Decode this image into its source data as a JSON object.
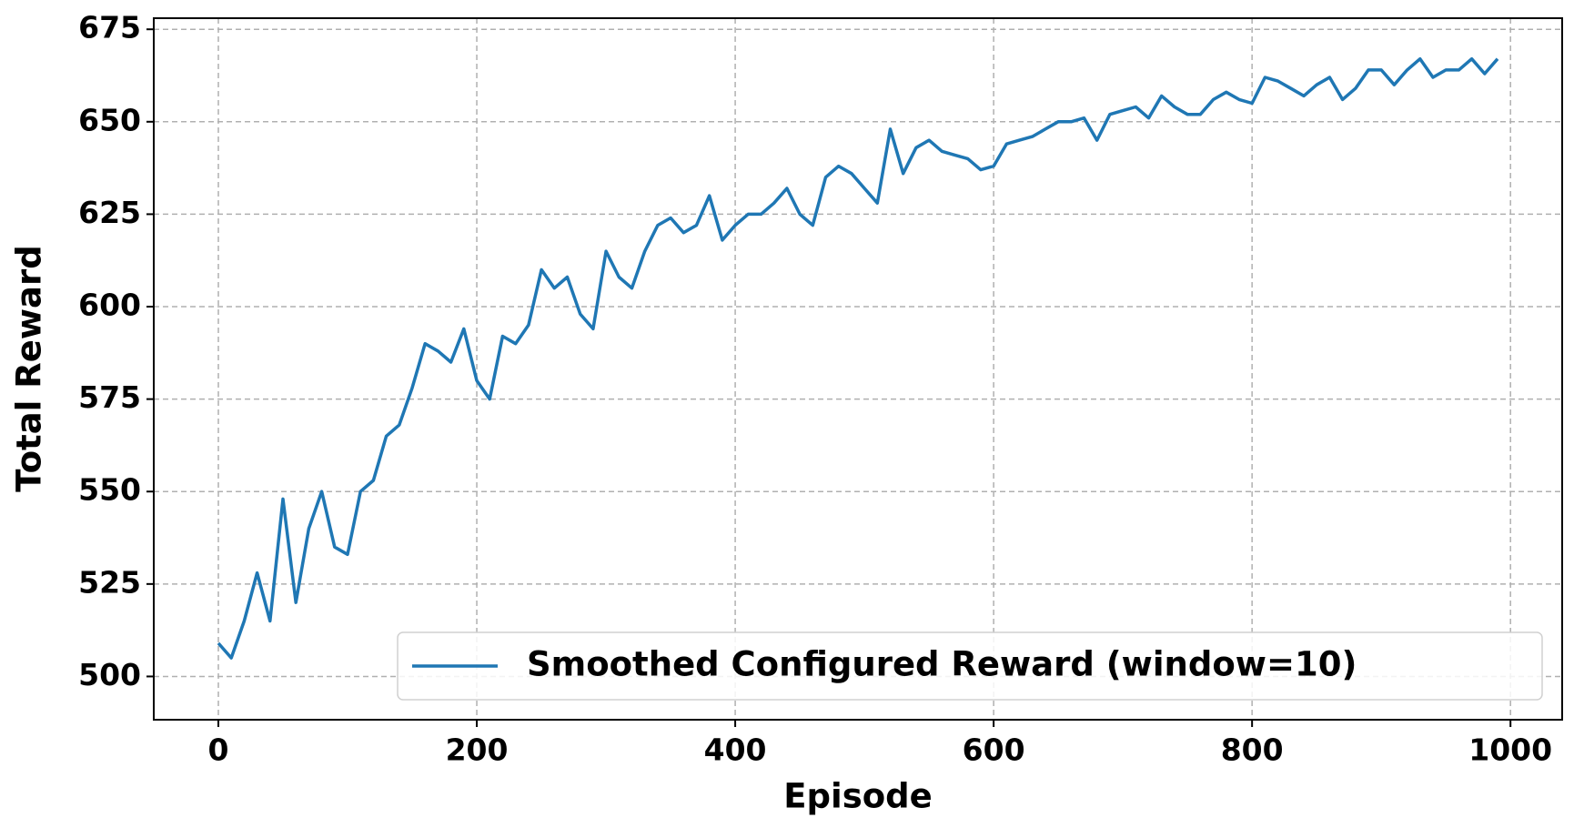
{
  "chart_data": {
    "type": "line",
    "xlabel": "Episode",
    "ylabel": "Total Reward",
    "x": [
      0,
      10,
      20,
      30,
      40,
      50,
      60,
      70,
      80,
      90,
      100,
      110,
      120,
      130,
      140,
      150,
      160,
      170,
      180,
      190,
      200,
      210,
      220,
      230,
      240,
      250,
      260,
      270,
      280,
      290,
      300,
      310,
      320,
      330,
      340,
      350,
      360,
      370,
      380,
      390,
      400,
      410,
      420,
      430,
      440,
      450,
      460,
      470,
      480,
      490,
      500,
      510,
      520,
      530,
      540,
      550,
      560,
      570,
      580,
      590,
      600,
      610,
      620,
      630,
      640,
      650,
      660,
      670,
      680,
      690,
      700,
      710,
      720,
      730,
      740,
      750,
      760,
      770,
      780,
      790,
      800,
      810,
      820,
      830,
      840,
      850,
      860,
      870,
      880,
      890,
      900,
      910,
      920,
      930,
      940,
      950,
      960,
      970,
      980,
      990
    ],
    "series": [
      {
        "name": "Smoothed Configured Reward (window=10)",
        "color": "#1f77b4",
        "values": [
          509,
          505,
          515,
          528,
          515,
          548,
          520,
          540,
          550,
          535,
          533,
          550,
          553,
          565,
          568,
          578,
          590,
          588,
          585,
          594,
          580,
          575,
          592,
          590,
          595,
          610,
          605,
          608,
          598,
          594,
          615,
          608,
          605,
          615,
          622,
          624,
          620,
          622,
          630,
          618,
          622,
          625,
          625,
          628,
          632,
          625,
          622,
          635,
          638,
          636,
          632,
          628,
          648,
          636,
          643,
          645,
          642,
          641,
          640,
          637,
          638,
          644,
          645,
          646,
          648,
          650,
          650,
          651,
          645,
          652,
          653,
          654,
          651,
          657,
          654,
          652,
          652,
          656,
          658,
          656,
          655,
          662,
          661,
          659,
          657,
          660,
          662,
          656,
          659,
          664,
          664,
          660,
          664,
          667,
          662,
          664,
          664,
          667,
          663,
          667
        ]
      }
    ],
    "xlim": [
      -50,
      1040
    ],
    "ylim": [
      488.3,
      678
    ],
    "xticks": [
      0,
      200,
      400,
      600,
      800,
      1000
    ],
    "yticks": [
      500,
      525,
      550,
      575,
      600,
      625,
      650,
      675
    ],
    "grid": true,
    "legend": "lower right"
  }
}
